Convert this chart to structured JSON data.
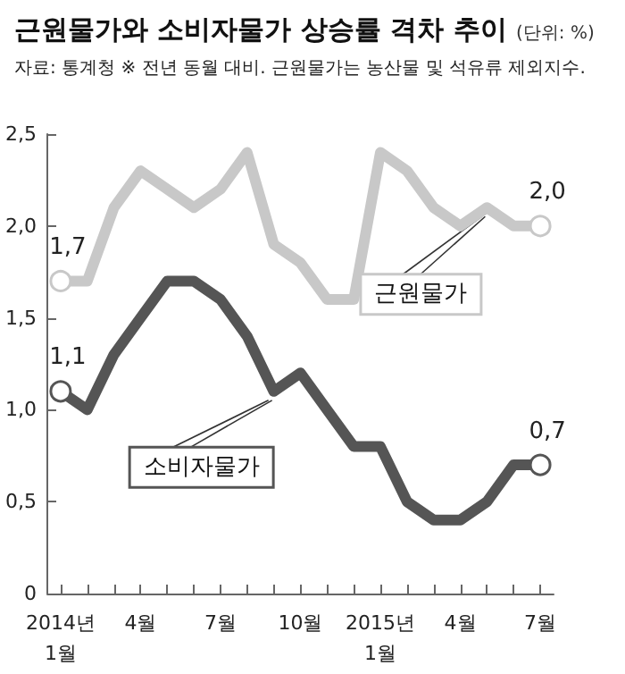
{
  "chart_data": {
    "type": "line",
    "title": "근원물가와 소비자물가 상승률 격차 추이",
    "ylabel": "(단위: %)",
    "subtitle": "자료: 통계청 ※ 전년 동월 대비. 근원물가는 농산물 및 석유류 제외지수.",
    "categories": [
      "2014년\n1월",
      null,
      null,
      "4월",
      null,
      null,
      "7월",
      null,
      null,
      "10월",
      null,
      null,
      "2015년\n1월",
      null,
      null,
      "4월",
      null,
      null,
      "7월"
    ],
    "series": [
      {
        "name": "근원물가",
        "color": "#c8c8c8",
        "values": [
          1.7,
          1.7,
          2.1,
          2.3,
          2.2,
          2.1,
          2.2,
          2.4,
          1.9,
          1.8,
          1.6,
          1.6,
          2.4,
          2.3,
          2.1,
          2.0,
          2.1,
          2.0,
          2.0
        ],
        "value_labels": [
          "1,7",
          null,
          null,
          null,
          null,
          null,
          null,
          null,
          null,
          null,
          null,
          null,
          null,
          null,
          null,
          null,
          null,
          null,
          "2,0"
        ]
      },
      {
        "name": "소비자물가",
        "color": "#555555",
        "values": [
          1.1,
          1.0,
          1.3,
          1.5,
          1.7,
          1.7,
          1.6,
          1.4,
          1.1,
          1.2,
          1.0,
          0.8,
          0.8,
          0.5,
          0.4,
          0.4,
          0.5,
          0.7,
          0.7
        ],
        "value_labels": [
          "1,1",
          null,
          null,
          null,
          null,
          null,
          null,
          null,
          null,
          null,
          null,
          null,
          null,
          null,
          null,
          null,
          null,
          null,
          "0,7"
        ]
      }
    ],
    "ylim": [
      0,
      2.5
    ],
    "yticks": [
      0,
      {
        "value": 0.5,
        "label": "0,5"
      },
      {
        "value": 1.0,
        "label": "1,0"
      },
      {
        "value": 1.5,
        "label": "1,5"
      },
      {
        "value": 2.0,
        "label": "2,0"
      },
      {
        "value": 2.5,
        "label": "2,5"
      }
    ],
    "grid": false,
    "legend": false
  }
}
